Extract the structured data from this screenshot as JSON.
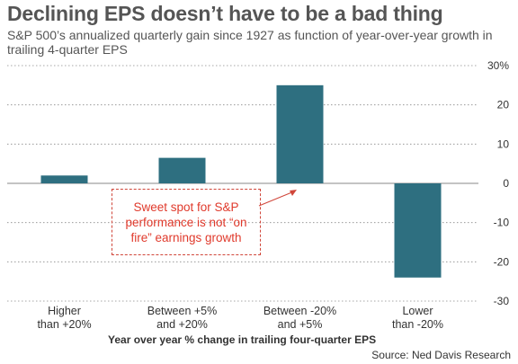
{
  "title": "Declining EPS doesn’t have to be a bad thing",
  "subtitle": "S&P 500’s annualized quarterly gain since 1927 as function of year-over-year growth in trailing 4-quarter EPS",
  "source": "Source: Ned Davis Research",
  "annotation": "Sweet spot for S&P performance is not “on fire” earnings growth",
  "colors": {
    "bar": "#2e6f80",
    "annotation": "#e03a2c",
    "grid": "#8a8a8a"
  },
  "chart_data": {
    "type": "bar",
    "categories": [
      [
        "Higher",
        "than +20%"
      ],
      [
        "Between +5%",
        "and +20%"
      ],
      [
        "Between -20%",
        "and +5%"
      ],
      [
        "Lower",
        "than -20%"
      ]
    ],
    "values": [
      2,
      6.5,
      25,
      -24
    ],
    "xlabel": "Year over year % change in trailing four-quarter EPS",
    "ylabel": "",
    "ylim": [
      -30,
      30
    ],
    "yticks": [
      {
        "value": 30,
        "label": "30%"
      },
      {
        "value": 20,
        "label": "20"
      },
      {
        "value": 10,
        "label": "10"
      },
      {
        "value": 0,
        "label": "0"
      },
      {
        "value": -10,
        "label": "-10"
      },
      {
        "value": -20,
        "label": "-20"
      },
      {
        "value": -30,
        "label": "-30"
      }
    ],
    "y_axis_side": "right",
    "grid": "dotted horizontal"
  }
}
